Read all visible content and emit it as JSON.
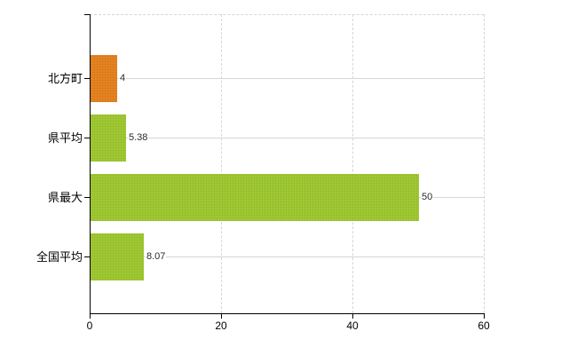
{
  "chart_data": {
    "type": "bar",
    "orientation": "horizontal",
    "title": "",
    "categories": [
      "北方町",
      "県平均",
      "県最大",
      "全国平均"
    ],
    "values": [
      4,
      5.38,
      50,
      8.07
    ],
    "value_labels": [
      "4",
      "5.38",
      "50",
      "8.07"
    ],
    "bar_color_names": [
      "orange",
      "green",
      "green",
      "green"
    ],
    "bar_colors": [
      "#e2801f",
      "#9cc531",
      "#9cc531",
      "#9cc531"
    ],
    "xlabel": "",
    "ylabel": "",
    "xlim": [
      0,
      60
    ],
    "x_ticks": [
      0,
      20,
      40,
      60
    ],
    "x_tick_labels": [
      "0",
      "20",
      "40",
      "60"
    ],
    "legend": "none",
    "grid": {
      "vertical_dashed_at": [
        20,
        40,
        60
      ],
      "horizontal_solid_at_category_centers": true,
      "top_border_dashed": true
    }
  },
  "style": {
    "axis_color": "#000000",
    "gridline_color": "#d4d8d2",
    "dashed_line_color": "#d9d4d6",
    "category_label_color": "#000000",
    "value_label_color": "#2b2b2b",
    "background_color": "#ffffff"
  }
}
